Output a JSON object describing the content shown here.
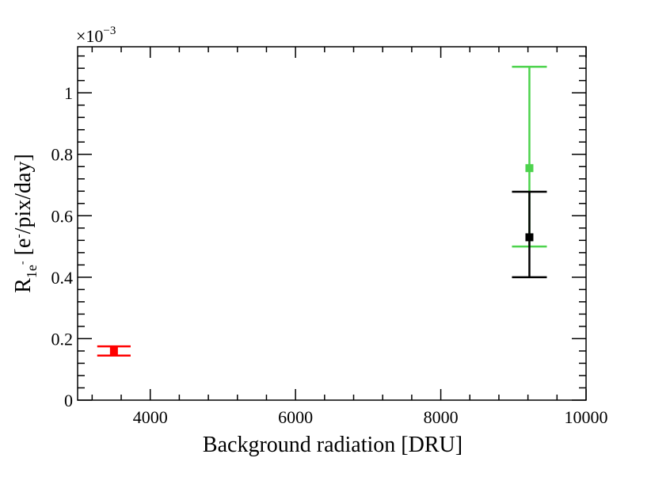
{
  "chart_data": {
    "type": "scatter",
    "xlabel": "Background radiation [DRU]",
    "ylabel": {
      "main": "R",
      "sub": "1e",
      "sub_sup": "-",
      "rest_a": " [e",
      "rest_sup": "-",
      "rest_b": "/pix/day]"
    },
    "xlim": [
      3000,
      10000
    ],
    "ylim": [
      0,
      1.15
    ],
    "x_ticks": [
      4000,
      6000,
      8000,
      10000
    ],
    "y_ticks": [
      0,
      0.2,
      0.4,
      0.6,
      0.8,
      1
    ],
    "y_tick_labels": [
      "0",
      "0.2",
      "0.4",
      "0.6",
      "0.8",
      "1"
    ],
    "y_exponent": {
      "base": "×10",
      "power": "−3"
    },
    "grid": false,
    "legend": "none",
    "series": [
      {
        "x": 3500,
        "y": 0.16,
        "y_err_low": 0.015,
        "y_err_high": 0.015,
        "x_err": 230,
        "color": "#ff0000"
      },
      {
        "x": 9220,
        "y": 0.755,
        "y_err_low": 0.255,
        "y_err_high": 0.33,
        "x_err": 240,
        "color": "#4dd34d"
      },
      {
        "x": 9220,
        "y": 0.53,
        "y_err_low": 0.13,
        "y_err_high": 0.148,
        "x_err": 240,
        "color": "#000000"
      }
    ]
  }
}
